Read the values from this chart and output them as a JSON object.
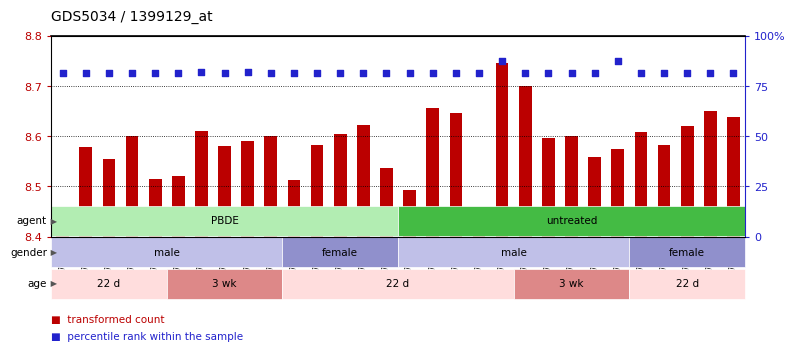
{
  "title": "GDS5034 / 1399129_at",
  "samples": [
    "GSM796783",
    "GSM796784",
    "GSM796785",
    "GSM796786",
    "GSM796787",
    "GSM796806",
    "GSM796807",
    "GSM796808",
    "GSM796809",
    "GSM796810",
    "GSM796796",
    "GSM796797",
    "GSM796798",
    "GSM796799",
    "GSM796800",
    "GSM796781",
    "GSM796788",
    "GSM796789",
    "GSM796790",
    "GSM796791",
    "GSM796801",
    "GSM796802",
    "GSM796803",
    "GSM796804",
    "GSM796805",
    "GSM796782",
    "GSM796792",
    "GSM796793",
    "GSM796794",
    "GSM796795"
  ],
  "bar_values": [
    8.415,
    8.578,
    8.555,
    8.6,
    8.515,
    8.52,
    8.61,
    8.58,
    8.59,
    8.601,
    8.513,
    8.583,
    8.605,
    8.622,
    8.537,
    8.493,
    8.656,
    8.646,
    8.42,
    8.745,
    8.7,
    8.597,
    8.601,
    8.558,
    8.575,
    8.608,
    8.582,
    8.62,
    8.65,
    8.638
  ],
  "percentile_values": [
    8.726,
    8.726,
    8.726,
    8.726,
    8.726,
    8.726,
    8.728,
    8.726,
    8.728,
    8.726,
    8.726,
    8.726,
    8.726,
    8.726,
    8.726,
    8.726,
    8.726,
    8.726,
    8.726,
    8.75,
    8.726,
    8.726,
    8.726,
    8.726,
    8.75,
    8.726,
    8.726,
    8.726,
    8.726,
    8.726
  ],
  "ylim": [
    8.4,
    8.8
  ],
  "yticks_left": [
    8.4,
    8.5,
    8.6,
    8.7,
    8.8
  ],
  "yticks_right_pct": [
    0,
    25,
    50,
    75,
    100
  ],
  "bar_color": "#bb0000",
  "percentile_color": "#2222cc",
  "bg_color": "#ffffff",
  "agent_groups": [
    {
      "label": "PBDE",
      "start": 0,
      "end": 15,
      "color": "#b2edb2"
    },
    {
      "label": "untreated",
      "start": 15,
      "end": 30,
      "color": "#44bb44"
    }
  ],
  "gender_groups": [
    {
      "label": "male",
      "start": 0,
      "end": 10,
      "color": "#c0c0e8"
    },
    {
      "label": "female",
      "start": 10,
      "end": 15,
      "color": "#9090cc"
    },
    {
      "label": "male",
      "start": 15,
      "end": 25,
      "color": "#c0c0e8"
    },
    {
      "label": "female",
      "start": 25,
      "end": 30,
      "color": "#9090cc"
    }
  ],
  "age_groups": [
    {
      "label": "22 d",
      "start": 0,
      "end": 5,
      "color": "#ffdddd"
    },
    {
      "label": "3 wk",
      "start": 5,
      "end": 10,
      "color": "#dd8888"
    },
    {
      "label": "22 d",
      "start": 10,
      "end": 20,
      "color": "#ffdddd"
    },
    {
      "label": "3 wk",
      "start": 20,
      "end": 25,
      "color": "#dd8888"
    },
    {
      "label": "22 d",
      "start": 25,
      "end": 30,
      "color": "#ffdddd"
    }
  ],
  "row_labels": [
    "agent",
    "gender",
    "age"
  ],
  "legend_labels": [
    "transformed count",
    "percentile rank within the sample"
  ],
  "legend_colors": [
    "#bb0000",
    "#2222cc"
  ]
}
